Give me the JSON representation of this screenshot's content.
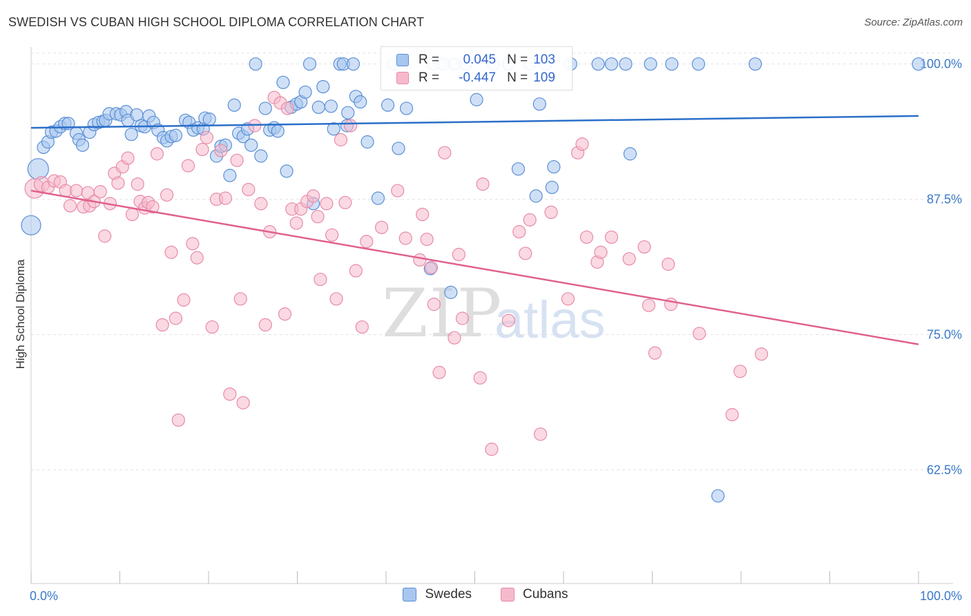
{
  "header": {
    "title": "SWEDISH VS CUBAN HIGH SCHOOL DIPLOMA CORRELATION CHART",
    "source": "Source: ZipAtlas.com"
  },
  "watermark": {
    "zip": "ZIP",
    "atlas": "atlas"
  },
  "legend_top": {
    "rows": [
      {
        "r_label": "R =",
        "r_value": "0.045",
        "n_label": "N =",
        "n_value": "103"
      },
      {
        "r_label": "R =",
        "r_value": "-0.447",
        "n_label": "N =",
        "n_value": "109"
      }
    ]
  },
  "legend_bottom": {
    "swedes": "Swedes",
    "cubans": "Cubans"
  },
  "colors": {
    "swedes_fill": "#a8c6ef",
    "swedes_stroke": "#5b8fd6",
    "swedes_line": "#2a6fc9",
    "cubans_fill": "#f6b9cc",
    "cubans_stroke": "#e88aa8",
    "cubans_line": "#e0608e",
    "axis_label": "#3a78c9",
    "grid": "#e3e3e3"
  },
  "chart_data": {
    "type": "scatter",
    "title": "SWEDISH VS CUBAN HIGH SCHOOL DIPLOMA CORRELATION CHART",
    "xlabel": "",
    "ylabel": "High School Diploma",
    "xlim": [
      0,
      100
    ],
    "ylim": [
      52,
      101
    ],
    "x_tick_labels": [
      "0.0%",
      "100.0%"
    ],
    "y_ticks": [
      100,
      87.5,
      75,
      62.5
    ],
    "y_tick_labels": [
      "100.0%",
      "87.5%",
      "75.0%",
      "62.5%"
    ],
    "grid": true,
    "legend_position": "top-center",
    "series": [
      {
        "name": "Swedes",
        "r": 0.045,
        "n": 103,
        "trend": {
          "x": [
            0,
            100
          ],
          "y": [
            94.1,
            95.2
          ]
        },
        "points": [
          [
            0.8,
            90.3,
            15
          ],
          [
            0,
            85.1,
            14
          ],
          [
            1.4,
            92.3,
            9
          ],
          [
            1.9,
            92.8,
            9
          ],
          [
            2.3,
            93.7,
            9
          ],
          [
            2.8,
            93.8,
            9
          ],
          [
            3.3,
            94.2,
            9
          ],
          [
            3.8,
            94.5,
            9
          ],
          [
            4.2,
            94.5,
            9
          ],
          [
            5.1,
            93.6,
            9
          ],
          [
            5.4,
            93,
            9
          ],
          [
            5.8,
            92.5,
            9
          ],
          [
            6.6,
            93.7,
            9
          ],
          [
            7.1,
            94.4,
            9
          ],
          [
            7.6,
            94.6,
            9
          ],
          [
            8.1,
            94.7,
            9
          ],
          [
            8.4,
            94.8,
            9
          ],
          [
            8.8,
            95.4,
            9
          ],
          [
            9.6,
            95.4,
            9
          ],
          [
            10.1,
            95.3,
            9
          ],
          [
            10.7,
            95.6,
            9
          ],
          [
            10.9,
            94.8,
            9
          ],
          [
            11.3,
            93.5,
            9
          ],
          [
            11.9,
            95.3,
            9
          ],
          [
            12.4,
            94.3,
            9
          ],
          [
            12.8,
            94.2,
            9
          ],
          [
            13.3,
            95.2,
            9
          ],
          [
            13.8,
            94.6,
            9
          ],
          [
            14.3,
            93.9,
            9
          ],
          [
            14.9,
            93.2,
            9
          ],
          [
            15.3,
            92.9,
            9
          ],
          [
            15.8,
            93.3,
            9
          ],
          [
            16.3,
            93.4,
            9
          ],
          [
            17.4,
            94.8,
            9
          ],
          [
            17.8,
            94.6,
            9
          ],
          [
            18.3,
            93.9,
            9
          ],
          [
            18.8,
            94.1,
            9
          ],
          [
            19.4,
            94,
            9
          ],
          [
            19.6,
            95,
            9
          ],
          [
            20.1,
            94.9,
            9
          ],
          [
            20.9,
            91.5,
            9
          ],
          [
            21.4,
            92.4,
            9
          ],
          [
            21.9,
            92.5,
            9
          ],
          [
            22.4,
            89.7,
            9
          ],
          [
            22.9,
            96.2,
            9
          ],
          [
            23.4,
            93.6,
            9
          ],
          [
            23.9,
            93.3,
            9
          ],
          [
            24.4,
            94,
            9
          ],
          [
            24.8,
            92.5,
            9
          ],
          [
            25.3,
            100,
            9
          ],
          [
            25.9,
            91.5,
            9
          ],
          [
            26.4,
            95.9,
            9
          ],
          [
            26.9,
            93.9,
            9
          ],
          [
            27.4,
            94.1,
            9
          ],
          [
            27.8,
            93.8,
            9
          ],
          [
            28.4,
            98.3,
            9
          ],
          [
            28.8,
            90.1,
            9
          ],
          [
            29.3,
            96,
            9
          ],
          [
            29.9,
            96.3,
            9
          ],
          [
            30.4,
            96.5,
            9
          ],
          [
            30.9,
            97.4,
            9
          ],
          [
            31.4,
            100,
            9
          ],
          [
            31.8,
            87.1,
            9
          ],
          [
            32.4,
            96,
            9
          ],
          [
            32.9,
            97.9,
            9
          ],
          [
            33.8,
            96.1,
            9
          ],
          [
            34.1,
            94,
            9
          ],
          [
            34.8,
            100,
            9
          ],
          [
            35.2,
            100,
            9
          ],
          [
            35.7,
            95.5,
            9
          ],
          [
            36.3,
            100,
            9
          ],
          [
            36.6,
            97,
            9
          ],
          [
            37.1,
            96.5,
            9
          ],
          [
            37.9,
            92.8,
            9
          ],
          [
            39.1,
            87.6,
            9
          ],
          [
            40.2,
            96.2,
            9
          ],
          [
            40.8,
            100,
            9
          ],
          [
            41.4,
            92.2,
            9
          ],
          [
            42.3,
            95.9,
            9
          ],
          [
            45.3,
            100,
            9
          ],
          [
            46.4,
            100,
            9
          ],
          [
            47.7,
            100,
            9
          ],
          [
            49,
            100,
            9
          ],
          [
            50.2,
            96.7,
            9
          ],
          [
            52.1,
            100,
            9
          ],
          [
            53.8,
            100,
            9
          ],
          [
            54.9,
            90.3,
            9
          ],
          [
            56.2,
            100,
            9
          ],
          [
            56.9,
            87.8,
            9
          ],
          [
            57.3,
            96.3,
            9
          ],
          [
            58,
            100,
            9
          ],
          [
            58.7,
            88.6,
            9
          ],
          [
            58.9,
            90.5,
            9
          ],
          [
            60.8,
            100,
            9
          ],
          [
            63.9,
            100,
            9
          ],
          [
            65.4,
            100,
            9
          ],
          [
            67,
            100,
            9
          ],
          [
            67.5,
            91.7,
            9
          ],
          [
            69.8,
            100,
            9
          ],
          [
            72.2,
            100,
            9
          ],
          [
            75.2,
            100,
            9
          ],
          [
            77.4,
            60.1,
            9
          ],
          [
            81.6,
            100,
            9
          ],
          [
            100,
            100,
            9
          ],
          [
            45,
            81.1,
            9
          ],
          [
            47.3,
            78.9,
            9
          ],
          [
            35.6,
            94.3,
            9
          ]
        ]
      },
      {
        "name": "Cubans",
        "r": -0.447,
        "n": 109,
        "trend": {
          "x": [
            0,
            100
          ],
          "y": [
            88.3,
            74.1
          ]
        },
        "points": [
          [
            0.4,
            88.5,
            14
          ],
          [
            1.2,
            88.9,
            11
          ],
          [
            1.9,
            88.6,
            9
          ],
          [
            2.6,
            89.2,
            9
          ],
          [
            3.3,
            89.1,
            9
          ],
          [
            3.9,
            88.3,
            9
          ],
          [
            4.4,
            86.9,
            9
          ],
          [
            5.1,
            88.3,
            9
          ],
          [
            5.9,
            86.8,
            9
          ],
          [
            6.4,
            88.1,
            9
          ],
          [
            6.6,
            86.9,
            9
          ],
          [
            7.1,
            87.3,
            9
          ],
          [
            7.8,
            88.2,
            9
          ],
          [
            8.3,
            84.1,
            9
          ],
          [
            8.9,
            87.1,
            9
          ],
          [
            9.4,
            89.9,
            9
          ],
          [
            9.8,
            89,
            9
          ],
          [
            10.3,
            90.5,
            9
          ],
          [
            10.9,
            91.3,
            9
          ],
          [
            11.4,
            86.1,
            9
          ],
          [
            12,
            88.9,
            9
          ],
          [
            12.3,
            87.3,
            9
          ],
          [
            12.8,
            86.7,
            9
          ],
          [
            13.2,
            87.2,
            9
          ],
          [
            13.7,
            86.8,
            9
          ],
          [
            14.2,
            91.7,
            9
          ],
          [
            14.8,
            75.9,
            9
          ],
          [
            15.3,
            87.9,
            9
          ],
          [
            15.8,
            82.6,
            9
          ],
          [
            16.3,
            76.5,
            9
          ],
          [
            16.6,
            67.1,
            9
          ],
          [
            17.2,
            78.2,
            9
          ],
          [
            17.7,
            90.6,
            9
          ],
          [
            18.2,
            83.4,
            9
          ],
          [
            18.7,
            82.1,
            9
          ],
          [
            19.3,
            92.1,
            9
          ],
          [
            19.8,
            93.2,
            9
          ],
          [
            20.4,
            75.7,
            9
          ],
          [
            20.9,
            87.5,
            9
          ],
          [
            21.4,
            92,
            9
          ],
          [
            21.9,
            87.6,
            9
          ],
          [
            22.4,
            69.5,
            9
          ],
          [
            23.2,
            91.1,
            9
          ],
          [
            23.6,
            78.3,
            9
          ],
          [
            23.9,
            68.7,
            9
          ],
          [
            24.5,
            88.4,
            9
          ],
          [
            25.2,
            94.3,
            9
          ],
          [
            25.9,
            87.1,
            9
          ],
          [
            26.4,
            75.9,
            9
          ],
          [
            26.9,
            84.5,
            9
          ],
          [
            27.4,
            96.9,
            9
          ],
          [
            28.1,
            96.4,
            9
          ],
          [
            28.6,
            76.9,
            9
          ],
          [
            28.9,
            95.9,
            9
          ],
          [
            29.4,
            86.6,
            9
          ],
          [
            29.9,
            85.3,
            9
          ],
          [
            30.4,
            86.6,
            9
          ],
          [
            31.1,
            87.3,
            9
          ],
          [
            31.8,
            87.8,
            9
          ],
          [
            32.3,
            85.9,
            9
          ],
          [
            32.6,
            80.1,
            9
          ],
          [
            33.3,
            87.1,
            9
          ],
          [
            33.9,
            84.2,
            9
          ],
          [
            34.4,
            78.3,
            9
          ],
          [
            34.9,
            93,
            9
          ],
          [
            35.4,
            87.2,
            9
          ],
          [
            36,
            94.3,
            9
          ],
          [
            36.6,
            80.9,
            9
          ],
          [
            37.3,
            75.7,
            9
          ],
          [
            37.8,
            83.6,
            9
          ],
          [
            39.5,
            84.9,
            9
          ],
          [
            41.3,
            88.3,
            9
          ],
          [
            42.2,
            83.9,
            9
          ],
          [
            43.8,
            81.9,
            9
          ],
          [
            44.1,
            86.1,
            9
          ],
          [
            44.6,
            83.8,
            9
          ],
          [
            45.1,
            81.2,
            9
          ],
          [
            45.4,
            77.8,
            9
          ],
          [
            46,
            71.5,
            9
          ],
          [
            46.6,
            91.8,
            9
          ],
          [
            47.7,
            74.7,
            9
          ],
          [
            48.6,
            76.5,
            9
          ],
          [
            50.6,
            71,
            9
          ],
          [
            50.9,
            88.9,
            9
          ],
          [
            51.9,
            64.4,
            9
          ],
          [
            53.8,
            76.3,
            9
          ],
          [
            55,
            84.5,
            9
          ],
          [
            55.7,
            82.5,
            9
          ],
          [
            57.4,
            65.8,
            9
          ],
          [
            58.6,
            86.3,
            9
          ],
          [
            60.5,
            78.3,
            9
          ],
          [
            61.6,
            91.8,
            9
          ],
          [
            62.1,
            92.6,
            9
          ],
          [
            62.6,
            84,
            9
          ],
          [
            63.8,
            81.7,
            9
          ],
          [
            64.2,
            82.6,
            9
          ],
          [
            65.4,
            84,
            9
          ],
          [
            67.4,
            82,
            9
          ],
          [
            69.1,
            83.1,
            9
          ],
          [
            69.6,
            77.7,
            9
          ],
          [
            70.3,
            73.3,
            9
          ],
          [
            71.8,
            81.5,
            9
          ],
          [
            72.1,
            77.8,
            9
          ],
          [
            75.3,
            75.1,
            9
          ],
          [
            79,
            67.6,
            9
          ],
          [
            79.9,
            71.6,
            9
          ],
          [
            82.3,
            73.2,
            9
          ],
          [
            56.2,
            85.6,
            9
          ],
          [
            48.2,
            82.4,
            9
          ]
        ]
      }
    ]
  }
}
